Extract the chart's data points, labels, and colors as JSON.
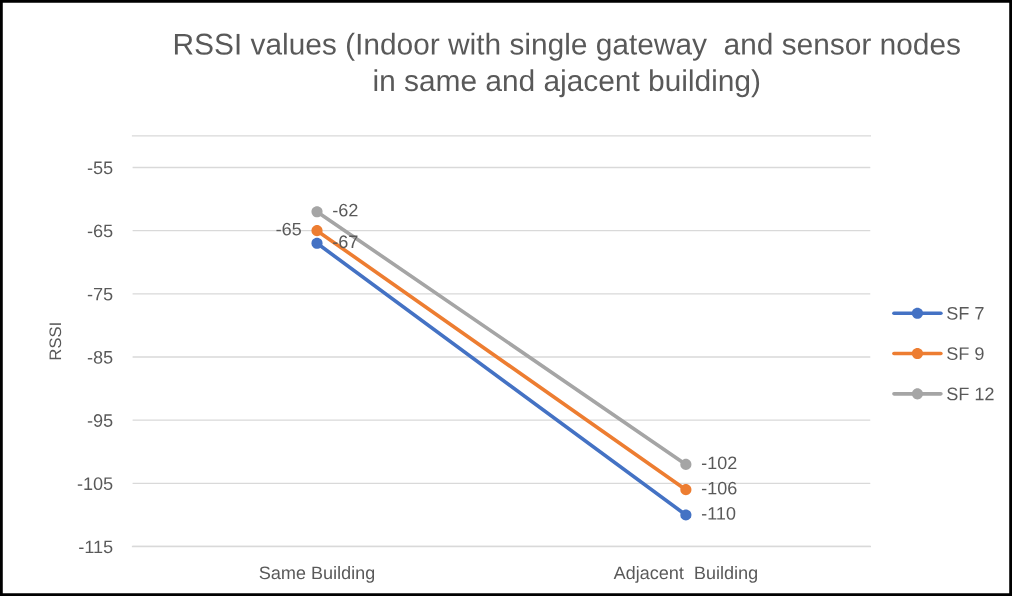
{
  "chart_data": {
    "type": "line",
    "title": "RSSI values (Indoor with single gateway  and sensor nodes\nin same and ajacent building)",
    "ylabel": "RSSI",
    "categories": [
      "Same Building",
      "Adjacent  Building"
    ],
    "series": [
      {
        "name": "SF 7",
        "color": "#4472c4",
        "values": [
          -67,
          -110
        ]
      },
      {
        "name": "SF 9",
        "color": "#ed7d31",
        "values": [
          -65,
          -106
        ]
      },
      {
        "name": "SF 12",
        "color": "#a5a5a5",
        "values": [
          -62,
          -102
        ]
      }
    ],
    "ylim": [
      -115,
      -50
    ],
    "yticks": [
      -115,
      -105,
      -95,
      -85,
      -75,
      -65,
      -55
    ],
    "grid": "y",
    "legend": "right",
    "marker": "circle",
    "line_style": "solid",
    "data_labels": true
  }
}
